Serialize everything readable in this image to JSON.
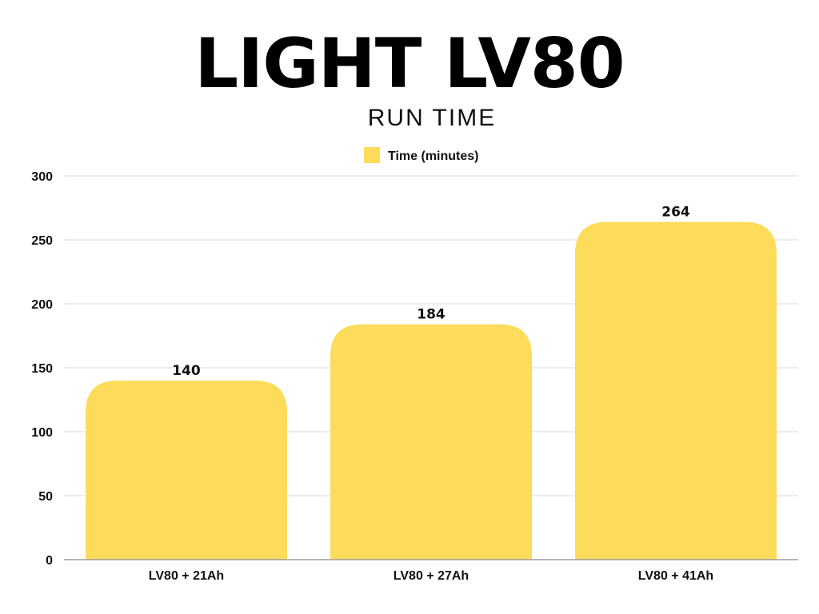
{
  "title": "LIGHT LV80",
  "subtitle": "RUN TIME",
  "colors": {
    "bar": "#FDDC5C",
    "grid": "#d9d9d9",
    "axis": "#9e9e9e",
    "text": "#111111"
  },
  "chart_data": {
    "type": "bar",
    "title": "LIGHT LV80",
    "subtitle": "RUN TIME",
    "categories": [
      "LV80 + 21Ah",
      "LV80 + 27Ah",
      "LV80 + 41Ah"
    ],
    "series": [
      {
        "name": "Time (minutes)",
        "values": [
          140,
          184,
          264
        ]
      }
    ],
    "data_labels": [
      "140",
      "184",
      "264"
    ],
    "xlabel": "",
    "ylabel": "",
    "ylim": [
      0,
      300
    ],
    "yticks": [
      0,
      50,
      100,
      150,
      200,
      250,
      300
    ],
    "ytick_labels": [
      "0",
      "50",
      "100",
      "150",
      "200",
      "250",
      "300"
    ],
    "grid": true,
    "legend_position": "top-center"
  }
}
